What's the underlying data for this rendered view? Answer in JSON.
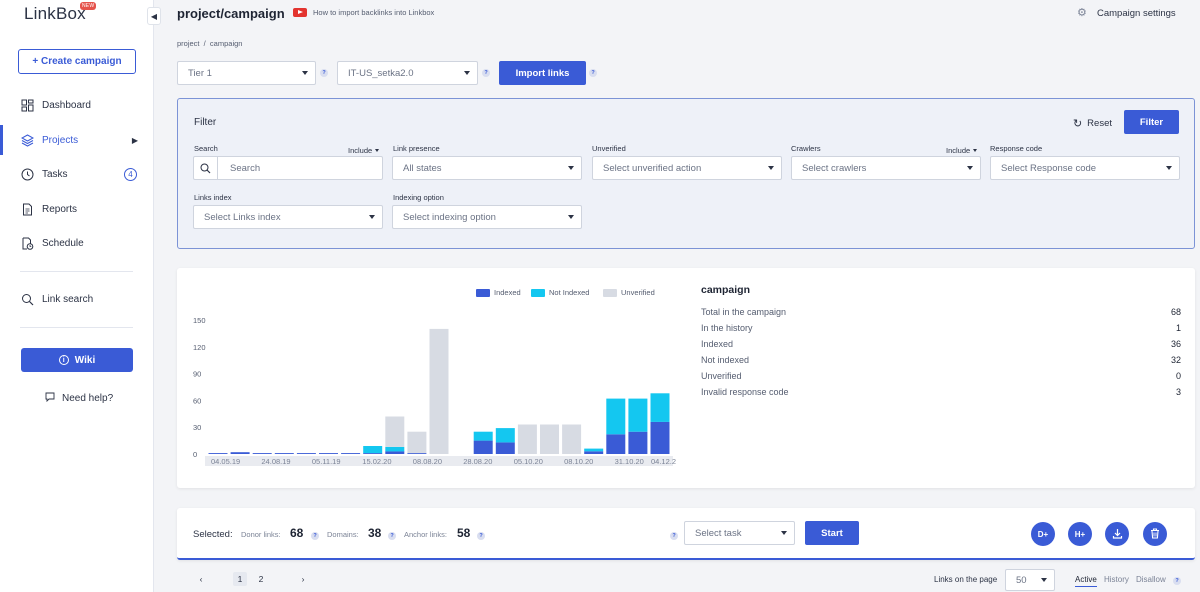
{
  "sidebar": {
    "logo": "LinkBox",
    "logo_badge": "NEW",
    "create_campaign": "+ Create campaign",
    "items": [
      {
        "label": "Dashboard"
      },
      {
        "label": "Projects"
      },
      {
        "label": "Tasks",
        "badge": "4"
      },
      {
        "label": "Reports"
      },
      {
        "label": "Schedule"
      },
      {
        "label": "Link search"
      }
    ],
    "wiki": "Wiki",
    "need_help": "Need help?"
  },
  "header": {
    "title": "project/campaign",
    "video_link": "How to import backlinks into Linkbox",
    "settings": "Campaign settings",
    "breadcrumb": "project  /  campaign"
  },
  "toolbar": {
    "tier": "Tier 1",
    "group": "IT-US_setka2.0",
    "import_label": "Import links"
  },
  "filter": {
    "title": "Filter",
    "reset": "Reset",
    "filter_btn": "Filter",
    "search_label": "Search",
    "search_include": "Include",
    "search_placeholder": "Search",
    "link_presence_label": "Link presence",
    "link_presence_value": "All states",
    "unverified_label": "Unverified",
    "unverified_value": "Select unverified action",
    "crawlers_label": "Crawlers",
    "crawlers_include": "Include",
    "crawlers_value": "Select crawlers",
    "response_label": "Response code",
    "response_value": "Select Response code",
    "links_index_label": "Links index",
    "links_index_value": "Select Links index",
    "indexing_label": "Indexing option",
    "indexing_value": "Select indexing option"
  },
  "stats": {
    "title": "campaign",
    "rows": [
      {
        "label": "Total in the campaign",
        "value": "68"
      },
      {
        "label": "In the history",
        "value": "1"
      },
      {
        "label": "Indexed",
        "value": "36"
      },
      {
        "label": "Not indexed",
        "value": "32"
      },
      {
        "label": "Unverified",
        "value": "0"
      },
      {
        "label": "Invalid response code",
        "value": "3"
      }
    ]
  },
  "chart_data": {
    "type": "bar",
    "stacked": true,
    "ylim": [
      0,
      150
    ],
    "yticks": [
      "150",
      "120",
      "90",
      "60",
      "30",
      "0"
    ],
    "xtick_labels": [
      "04.05.19",
      "24.08.19",
      "05.11.19",
      "15.02.20",
      "08.08.20",
      "28.08.20",
      "05.10.20",
      "08.10.20",
      "31.10.20",
      "04.12.2"
    ],
    "legend_position": "top",
    "colors": {
      "Indexed": "#3a5bd6",
      "Not Indexed": "#14c7f0",
      "Unverified": "#d7dbe3"
    },
    "series": [
      {
        "name": "Indexed",
        "values": [
          1,
          2,
          1,
          1,
          1,
          1,
          1,
          1,
          3,
          1,
          0,
          0,
          15,
          13,
          0,
          0,
          0,
          3,
          22,
          25,
          36
        ]
      },
      {
        "name": "Not Indexed",
        "values": [
          0,
          0,
          0,
          0,
          0,
          0,
          0,
          8,
          5,
          0,
          0,
          0,
          10,
          16,
          0,
          0,
          0,
          3,
          40,
          37,
          32
        ]
      },
      {
        "name": "Unverified",
        "values": [
          0,
          0,
          0,
          0,
          0,
          0,
          0,
          0,
          34,
          24,
          140,
          0,
          0,
          0,
          33,
          33,
          33,
          0,
          0,
          0,
          0
        ]
      }
    ]
  },
  "bottom": {
    "selected": "Selected:",
    "donor_label": "Donor links:",
    "donor_value": "68",
    "domains_label": "Domains:",
    "domains_value": "38",
    "anchor_label": "Anchor links:",
    "anchor_value": "58",
    "task_placeholder": "Select task",
    "start": "Start",
    "d_btn": "D+",
    "h_btn": "H+"
  },
  "pager": {
    "pages": [
      "1",
      "2"
    ],
    "per_page_label": "Links on the page",
    "per_page_value": "50",
    "tabs": [
      "Active",
      "History",
      "Disallow"
    ]
  }
}
